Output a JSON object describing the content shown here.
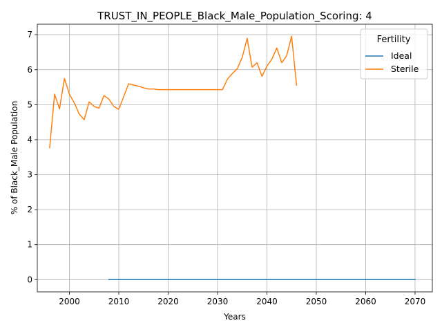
{
  "chart_data": {
    "type": "line",
    "title": "TRUST_IN_PEOPLE_Black_Male_Population_Scoring: 4",
    "xlabel": "Years",
    "ylabel": "% of Black_Male Population",
    "xlim": [
      1993.5,
      2073.5
    ],
    "ylim": [
      -0.35,
      7.3
    ],
    "xticks": [
      2000,
      2010,
      2020,
      2030,
      2040,
      2050,
      2060,
      2070
    ],
    "xtick_labels": [
      "2000",
      "2010",
      "2020",
      "2030",
      "2040",
      "2050",
      "2060",
      "2070"
    ],
    "yticks": [
      0,
      1,
      2,
      3,
      4,
      5,
      6,
      7
    ],
    "ytick_labels": [
      "0",
      "1",
      "2",
      "3",
      "4",
      "5",
      "6",
      "7"
    ],
    "grid": true,
    "legend": {
      "title": "Fertility",
      "placement": "top-right"
    },
    "series": [
      {
        "name": "Ideal",
        "color": "#1f77b4",
        "x": [
          2008,
          2070
        ],
        "y": [
          0,
          0
        ]
      },
      {
        "name": "Sterile",
        "color": "#ff7f0e",
        "x": [
          1996,
          1997,
          1998,
          1999,
          2000,
          2001,
          2002,
          2003,
          2004,
          2005,
          2006,
          2007,
          2008,
          2009,
          2010,
          2011,
          2012,
          2013,
          2014,
          2015,
          2016,
          2017,
          2018,
          2019,
          2020,
          2021,
          2022,
          2023,
          2024,
          2025,
          2026,
          2027,
          2028,
          2029,
          2030,
          2031,
          2032,
          2033,
          2034,
          2035,
          2036,
          2037,
          2038,
          2039,
          2040,
          2041,
          2042,
          2043,
          2044,
          2045,
          2046
        ],
        "y": [
          3.77,
          5.3,
          4.88,
          5.75,
          5.3,
          5.05,
          4.73,
          4.57,
          5.08,
          4.95,
          4.9,
          5.26,
          5.16,
          4.95,
          4.87,
          5.23,
          5.6,
          5.56,
          5.53,
          5.48,
          5.45,
          5.45,
          5.43,
          5.43,
          5.43,
          5.43,
          5.43,
          5.43,
          5.43,
          5.43,
          5.43,
          5.43,
          5.43,
          5.43,
          5.43,
          5.43,
          5.73,
          5.89,
          6.03,
          6.35,
          6.9,
          6.07,
          6.2,
          5.81,
          6.1,
          6.3,
          6.62,
          6.2,
          6.4,
          6.96,
          5.56
        ]
      }
    ]
  }
}
